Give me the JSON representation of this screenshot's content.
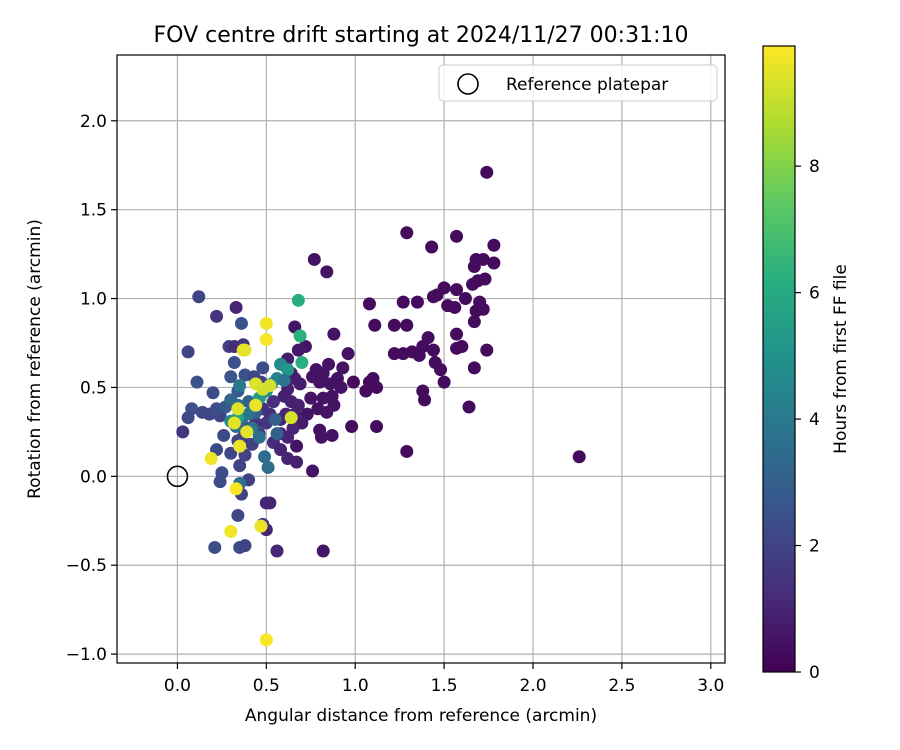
{
  "chart_data": {
    "type": "scatter",
    "title": "FOV centre drift starting at 2024/11/27 00:31:10",
    "xlabel": "Angular distance from reference (arcmin)",
    "ylabel": "Rotation from reference (arcmin)",
    "xlim": [
      -0.34,
      3.08
    ],
    "ylim": [
      -1.05,
      2.37
    ],
    "xticks": [
      0.0,
      0.5,
      1.0,
      1.5,
      2.0,
      2.5,
      3.0
    ],
    "xtick_labels": [
      "0.0",
      "0.5",
      "1.0",
      "1.5",
      "2.0",
      "2.5",
      "3.0"
    ],
    "yticks": [
      -1.0,
      -0.5,
      0.0,
      0.5,
      1.0,
      1.5,
      2.0
    ],
    "ytick_labels": [
      "−1.0",
      "−0.5",
      "0.0",
      "0.5",
      "1.0",
      "1.5",
      "2.0"
    ],
    "grid": true,
    "legend": {
      "position": "top-right",
      "entries": [
        "Reference platepar"
      ]
    },
    "reference_point": {
      "x": 0.0,
      "y": 0.0
    },
    "colorbar": {
      "label": "Hours from first FF file",
      "min": 0,
      "max": 9.9,
      "colormap": "viridis",
      "ticks": [
        0,
        2,
        4,
        6,
        8
      ],
      "tick_labels": [
        "0",
        "2",
        "4",
        "6",
        "8"
      ]
    },
    "points": [
      {
        "x": 1.74,
        "y": 1.71,
        "c": 0.3
      },
      {
        "x": 1.29,
        "y": 1.37,
        "c": 0.3
      },
      {
        "x": 1.57,
        "y": 1.35,
        "c": 0.3
      },
      {
        "x": 1.43,
        "y": 1.29,
        "c": 0.3
      },
      {
        "x": 1.78,
        "y": 1.3,
        "c": 0.3
      },
      {
        "x": 1.68,
        "y": 1.22,
        "c": 0.3
      },
      {
        "x": 1.72,
        "y": 1.22,
        "c": 0.3
      },
      {
        "x": 1.78,
        "y": 1.2,
        "c": 0.3
      },
      {
        "x": 1.67,
        "y": 1.18,
        "c": 0.3
      },
      {
        "x": 1.69,
        "y": 1.1,
        "c": 0.3
      },
      {
        "x": 1.73,
        "y": 1.11,
        "c": 0.3
      },
      {
        "x": 1.66,
        "y": 1.08,
        "c": 0.3
      },
      {
        "x": 1.57,
        "y": 1.05,
        "c": 0.3
      },
      {
        "x": 1.5,
        "y": 1.06,
        "c": 0.3
      },
      {
        "x": 1.62,
        "y": 1.0,
        "c": 0.3
      },
      {
        "x": 1.7,
        "y": 0.98,
        "c": 0.3
      },
      {
        "x": 1.46,
        "y": 1.02,
        "c": 0.3
      },
      {
        "x": 1.44,
        "y": 1.01,
        "c": 0.3
      },
      {
        "x": 1.52,
        "y": 0.96,
        "c": 0.3
      },
      {
        "x": 1.56,
        "y": 0.95,
        "c": 0.3
      },
      {
        "x": 1.68,
        "y": 0.93,
        "c": 0.3
      },
      {
        "x": 1.72,
        "y": 0.94,
        "c": 0.3
      },
      {
        "x": 1.67,
        "y": 0.87,
        "c": 0.3
      },
      {
        "x": 1.35,
        "y": 0.98,
        "c": 0.3
      },
      {
        "x": 1.27,
        "y": 0.98,
        "c": 0.3
      },
      {
        "x": 1.08,
        "y": 0.97,
        "c": 0.3
      },
      {
        "x": 1.57,
        "y": 0.8,
        "c": 0.3
      },
      {
        "x": 1.41,
        "y": 0.78,
        "c": 0.3
      },
      {
        "x": 1.38,
        "y": 0.73,
        "c": 0.3
      },
      {
        "x": 1.57,
        "y": 0.72,
        "c": 0.3
      },
      {
        "x": 1.6,
        "y": 0.73,
        "c": 0.3
      },
      {
        "x": 1.74,
        "y": 0.71,
        "c": 0.3
      },
      {
        "x": 1.44,
        "y": 0.71,
        "c": 0.3
      },
      {
        "x": 1.36,
        "y": 0.68,
        "c": 0.3
      },
      {
        "x": 1.32,
        "y": 0.7,
        "c": 0.3
      },
      {
        "x": 1.27,
        "y": 0.69,
        "c": 0.3
      },
      {
        "x": 1.22,
        "y": 0.69,
        "c": 0.3
      },
      {
        "x": 1.22,
        "y": 0.85,
        "c": 0.3
      },
      {
        "x": 1.29,
        "y": 0.85,
        "c": 0.3
      },
      {
        "x": 1.11,
        "y": 0.85,
        "c": 0.3
      },
      {
        "x": 1.67,
        "y": 0.61,
        "c": 0.3
      },
      {
        "x": 1.48,
        "y": 0.6,
        "c": 0.3
      },
      {
        "x": 1.45,
        "y": 0.64,
        "c": 0.3
      },
      {
        "x": 1.5,
        "y": 0.53,
        "c": 0.3
      },
      {
        "x": 1.38,
        "y": 0.48,
        "c": 0.3
      },
      {
        "x": 1.39,
        "y": 0.43,
        "c": 0.3
      },
      {
        "x": 1.64,
        "y": 0.39,
        "c": 0.3
      },
      {
        "x": 2.26,
        "y": 0.11,
        "c": 0.3
      },
      {
        "x": 1.29,
        "y": 0.14,
        "c": 0.3
      },
      {
        "x": 1.12,
        "y": 0.28,
        "c": 0.3
      },
      {
        "x": 1.1,
        "y": 0.55,
        "c": 0.3
      },
      {
        "x": 1.08,
        "y": 0.53,
        "c": 0.3
      },
      {
        "x": 1.12,
        "y": 0.5,
        "c": 0.3
      },
      {
        "x": 1.06,
        "y": 0.48,
        "c": 0.3
      },
      {
        "x": 0.99,
        "y": 0.53,
        "c": 0.3
      },
      {
        "x": 0.98,
        "y": 0.28,
        "c": 0.3
      },
      {
        "x": 0.96,
        "y": 0.69,
        "c": 0.5
      },
      {
        "x": 0.88,
        "y": 0.8,
        "c": 0.5
      },
      {
        "x": 0.84,
        "y": 1.15,
        "c": 0.5
      },
      {
        "x": 0.77,
        "y": 1.22,
        "c": 0.5
      },
      {
        "x": 0.93,
        "y": 0.61,
        "c": 0.5
      },
      {
        "x": 0.85,
        "y": 0.63,
        "c": 0.5
      },
      {
        "x": 0.82,
        "y": 0.58,
        "c": 0.5
      },
      {
        "x": 0.78,
        "y": 0.6,
        "c": 0.5
      },
      {
        "x": 0.76,
        "y": 0.56,
        "c": 0.5
      },
      {
        "x": 0.8,
        "y": 0.53,
        "c": 0.5
      },
      {
        "x": 0.86,
        "y": 0.52,
        "c": 0.5
      },
      {
        "x": 0.9,
        "y": 0.55,
        "c": 0.5
      },
      {
        "x": 0.92,
        "y": 0.5,
        "c": 0.5
      },
      {
        "x": 0.87,
        "y": 0.45,
        "c": 0.5
      },
      {
        "x": 0.82,
        "y": 0.44,
        "c": 0.5
      },
      {
        "x": 0.75,
        "y": 0.44,
        "c": 0.5
      },
      {
        "x": 0.79,
        "y": 0.38,
        "c": 0.5
      },
      {
        "x": 0.84,
        "y": 0.36,
        "c": 0.5
      },
      {
        "x": 0.88,
        "y": 0.4,
        "c": 0.5
      },
      {
        "x": 0.73,
        "y": 0.35,
        "c": 0.5
      },
      {
        "x": 0.8,
        "y": 0.26,
        "c": 0.5
      },
      {
        "x": 0.81,
        "y": 0.22,
        "c": 0.5
      },
      {
        "x": 0.87,
        "y": 0.23,
        "c": 0.5
      },
      {
        "x": 0.67,
        "y": 0.17,
        "c": 0.5
      },
      {
        "x": 0.76,
        "y": 0.03,
        "c": 0.5
      },
      {
        "x": 0.82,
        "y": -0.42,
        "c": 0.6
      },
      {
        "x": 0.66,
        "y": 0.84,
        "c": 0.6
      },
      {
        "x": 0.72,
        "y": 0.73,
        "c": 0.6
      },
      {
        "x": 0.68,
        "y": 0.71,
        "c": 0.7
      },
      {
        "x": 0.62,
        "y": 0.66,
        "c": 0.8
      },
      {
        "x": 0.64,
        "y": 0.58,
        "c": 0.8
      },
      {
        "x": 0.66,
        "y": 0.55,
        "c": 0.8
      },
      {
        "x": 0.69,
        "y": 0.52,
        "c": 0.8
      },
      {
        "x": 0.62,
        "y": 0.49,
        "c": 0.9
      },
      {
        "x": 0.6,
        "y": 0.45,
        "c": 0.9
      },
      {
        "x": 0.64,
        "y": 0.42,
        "c": 0.9
      },
      {
        "x": 0.68,
        "y": 0.4,
        "c": 0.9
      },
      {
        "x": 0.66,
        "y": 0.35,
        "c": 0.9
      },
      {
        "x": 0.61,
        "y": 0.35,
        "c": 1.0
      },
      {
        "x": 0.58,
        "y": 0.32,
        "c": 1.0
      },
      {
        "x": 0.7,
        "y": 0.3,
        "c": 0.8
      },
      {
        "x": 0.65,
        "y": 0.27,
        "c": 1.0
      },
      {
        "x": 0.58,
        "y": 0.24,
        "c": 1.0
      },
      {
        "x": 0.62,
        "y": 0.22,
        "c": 1.0
      },
      {
        "x": 0.54,
        "y": 0.19,
        "c": 1.2
      },
      {
        "x": 0.58,
        "y": 0.15,
        "c": 1.0
      },
      {
        "x": 0.62,
        "y": 0.1,
        "c": 1.0
      },
      {
        "x": 0.67,
        "y": 0.08,
        "c": 0.9
      },
      {
        "x": 0.5,
        "y": -0.15,
        "c": 1.0
      },
      {
        "x": 0.52,
        "y": -0.15,
        "c": 1.0
      },
      {
        "x": 0.5,
        "y": -0.3,
        "c": 1.0
      },
      {
        "x": 0.56,
        "y": -0.42,
        "c": 1.0
      },
      {
        "x": 0.54,
        "y": 0.42,
        "c": 1.3
      },
      {
        "x": 0.52,
        "y": 0.35,
        "c": 1.3
      },
      {
        "x": 0.48,
        "y": 0.38,
        "c": 1.4
      },
      {
        "x": 0.5,
        "y": 0.3,
        "c": 1.5
      },
      {
        "x": 0.44,
        "y": 0.3,
        "c": 1.6
      },
      {
        "x": 0.46,
        "y": 0.24,
        "c": 1.7
      },
      {
        "x": 0.4,
        "y": 0.27,
        "c": 1.7
      },
      {
        "x": 0.37,
        "y": 0.22,
        "c": 1.8
      },
      {
        "x": 0.34,
        "y": 0.2,
        "c": 1.9
      },
      {
        "x": 0.42,
        "y": 0.18,
        "c": 1.8
      },
      {
        "x": 0.38,
        "y": 0.12,
        "c": 2.0
      },
      {
        "x": 0.35,
        "y": 0.06,
        "c": 2.0
      },
      {
        "x": 0.3,
        "y": 0.13,
        "c": 2.1
      },
      {
        "x": 0.26,
        "y": 0.23,
        "c": 2.2
      },
      {
        "x": 0.22,
        "y": 0.15,
        "c": 2.2
      },
      {
        "x": 0.25,
        "y": 0.02,
        "c": 2.3
      },
      {
        "x": 0.24,
        "y": -0.03,
        "c": 2.3
      },
      {
        "x": 0.21,
        "y": -0.4,
        "c": 2.3
      },
      {
        "x": 0.35,
        "y": -0.4,
        "c": 2.2
      },
      {
        "x": 0.38,
        "y": -0.39,
        "c": 2.0
      },
      {
        "x": 0.34,
        "y": -0.22,
        "c": 2.1
      },
      {
        "x": 0.36,
        "y": -0.1,
        "c": 2.0
      },
      {
        "x": 0.4,
        "y": -0.02,
        "c": 1.8
      },
      {
        "x": 0.48,
        "y": -0.27,
        "c": 1.6
      },
      {
        "x": 0.06,
        "y": 0.7,
        "c": 2.0
      },
      {
        "x": 0.12,
        "y": 1.01,
        "c": 2.0
      },
      {
        "x": 0.22,
        "y": 0.9,
        "c": 1.5
      },
      {
        "x": 0.33,
        "y": 0.95,
        "c": 1.0
      },
      {
        "x": 0.36,
        "y": 0.86,
        "c": 2.5
      },
      {
        "x": 0.29,
        "y": 0.73,
        "c": 1.8
      },
      {
        "x": 0.32,
        "y": 0.73,
        "c": 1.2
      },
      {
        "x": 0.37,
        "y": 0.74,
        "c": 1.5
      },
      {
        "x": 0.32,
        "y": 0.64,
        "c": 2.4
      },
      {
        "x": 0.38,
        "y": 0.57,
        "c": 2.4
      },
      {
        "x": 0.43,
        "y": 0.56,
        "c": 2.2
      },
      {
        "x": 0.48,
        "y": 0.61,
        "c": 2.3
      },
      {
        "x": 0.47,
        "y": 0.53,
        "c": 2.0
      },
      {
        "x": 0.3,
        "y": 0.56,
        "c": 2.6
      },
      {
        "x": 0.34,
        "y": 0.48,
        "c": 2.8
      },
      {
        "x": 0.2,
        "y": 0.47,
        "c": 2.3
      },
      {
        "x": 0.11,
        "y": 0.53,
        "c": 2.5
      },
      {
        "x": 0.08,
        "y": 0.38,
        "c": 2.4
      },
      {
        "x": 0.14,
        "y": 0.36,
        "c": 2.2
      },
      {
        "x": 0.18,
        "y": 0.35,
        "c": 2.1
      },
      {
        "x": 0.06,
        "y": 0.33,
        "c": 2.2
      },
      {
        "x": 0.03,
        "y": 0.25,
        "c": 1.5
      },
      {
        "x": 0.24,
        "y": 0.34,
        "c": 2.0
      },
      {
        "x": 0.22,
        "y": 0.38,
        "c": 2.3
      },
      {
        "x": 0.27,
        "y": 0.39,
        "c": 2.7
      },
      {
        "x": 0.3,
        "y": 0.43,
        "c": 3.3
      },
      {
        "x": 0.34,
        "y": 0.4,
        "c": 3.5
      },
      {
        "x": 0.4,
        "y": 0.42,
        "c": 3.2
      },
      {
        "x": 0.44,
        "y": 0.36,
        "c": 3.0
      },
      {
        "x": 0.36,
        "y": 0.32,
        "c": 3.3
      },
      {
        "x": 0.33,
        "y": 0.28,
        "c": 3.6
      },
      {
        "x": 0.4,
        "y": 0.35,
        "c": 3.8
      },
      {
        "x": 0.46,
        "y": 0.44,
        "c": 5.4
      },
      {
        "x": 0.5,
        "y": 0.48,
        "c": 5.0
      },
      {
        "x": 0.53,
        "y": 0.52,
        "c": 4.6
      },
      {
        "x": 0.56,
        "y": 0.55,
        "c": 4.4
      },
      {
        "x": 0.58,
        "y": 0.63,
        "c": 4.8
      },
      {
        "x": 0.62,
        "y": 0.6,
        "c": 5.2
      },
      {
        "x": 0.6,
        "y": 0.54,
        "c": 3.8
      },
      {
        "x": 0.7,
        "y": 0.64,
        "c": 6.2
      },
      {
        "x": 0.68,
        "y": 0.99,
        "c": 6.1
      },
      {
        "x": 0.69,
        "y": 0.79,
        "c": 6.3
      },
      {
        "x": 0.35,
        "y": 0.51,
        "c": 4.0
      },
      {
        "x": 0.34,
        "y": 0.33,
        "c": 5.6
      },
      {
        "x": 0.3,
        "y": 0.31,
        "c": 4.8
      },
      {
        "x": 0.46,
        "y": 0.22,
        "c": 3.5
      },
      {
        "x": 0.49,
        "y": 0.11,
        "c": 3.5
      },
      {
        "x": 0.51,
        "y": 0.05,
        "c": 3.5
      },
      {
        "x": 0.35,
        "y": -0.04,
        "c": 3.6
      },
      {
        "x": 0.42,
        "y": 0.27,
        "c": 3.8
      },
      {
        "x": 0.55,
        "y": 0.32,
        "c": 3.0
      },
      {
        "x": 0.56,
        "y": 0.24,
        "c": 3.0
      },
      {
        "x": 0.37,
        "y": 0.71,
        "c": 9.6
      },
      {
        "x": 0.5,
        "y": 0.86,
        "c": 9.7
      },
      {
        "x": 0.5,
        "y": 0.77,
        "c": 9.8
      },
      {
        "x": 0.38,
        "y": 0.71,
        "c": 9.5
      },
      {
        "x": 0.34,
        "y": 0.38,
        "c": 9.4
      },
      {
        "x": 0.44,
        "y": 0.52,
        "c": 9.4
      },
      {
        "x": 0.52,
        "y": 0.51,
        "c": 9.3
      },
      {
        "x": 0.48,
        "y": 0.49,
        "c": 9.2
      },
      {
        "x": 0.44,
        "y": 0.4,
        "c": 9.6
      },
      {
        "x": 0.32,
        "y": 0.3,
        "c": 9.5
      },
      {
        "x": 0.35,
        "y": 0.17,
        "c": 9.6
      },
      {
        "x": 0.19,
        "y": 0.1,
        "c": 9.7
      },
      {
        "x": 0.33,
        "y": -0.07,
        "c": 9.8
      },
      {
        "x": 0.3,
        "y": -0.31,
        "c": 9.7
      },
      {
        "x": 0.47,
        "y": -0.28,
        "c": 9.6
      },
      {
        "x": 0.5,
        "y": -0.92,
        "c": 9.8
      },
      {
        "x": 0.64,
        "y": 0.33,
        "c": 9.3
      },
      {
        "x": 0.39,
        "y": 0.25,
        "c": 9.5
      }
    ]
  }
}
